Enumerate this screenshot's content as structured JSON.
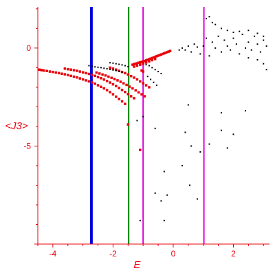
{
  "chart_data": {
    "type": "scatter",
    "title": "",
    "xlabel": "E",
    "ylabel": "<J3>",
    "xlim": [
      -4.5,
      3.2
    ],
    "ylim": [
      -10,
      2.1
    ],
    "grid": false,
    "legend": "none",
    "x_ticks": [
      -4,
      -2,
      0,
      2
    ],
    "x_tick_labels": [
      "-4",
      "-2",
      "0",
      "2"
    ],
    "y_ticks": [
      0,
      -5
    ],
    "y_tick_labels": [
      "0",
      "-5"
    ],
    "colors": {
      "axes": "#e8000b",
      "red_series": "#e8000b",
      "black_series": "#000000",
      "blue_line": "#0000dd",
      "green_line": "#008000",
      "magenta_line": "#e000e0"
    },
    "vertical_lines": [
      {
        "x": -2.72,
        "color": "#0000dd",
        "width": 4
      },
      {
        "x": -1.48,
        "color": "#008000",
        "width": 2
      },
      {
        "x": -1.0,
        "color": "#e000e0",
        "width": 2
      },
      {
        "x": 1.02,
        "color": "#e000e0",
        "width": 2
      }
    ],
    "series": [
      {
        "color": "#e8000b",
        "points": [
          [
            -4.45,
            -1.1
          ],
          [
            -4.4,
            -1.12
          ],
          [
            -4.35,
            -1.13
          ],
          [
            -4.3,
            -1.15
          ],
          [
            -4.2,
            -1.17
          ],
          [
            -4.1,
            -1.2
          ],
          [
            -4.0,
            -1.22
          ],
          [
            -3.9,
            -1.25
          ],
          [
            -3.8,
            -1.28
          ],
          [
            -3.7,
            -1.31
          ],
          [
            -3.6,
            -1.34
          ],
          [
            -3.5,
            -1.38
          ],
          [
            -3.4,
            -1.42
          ],
          [
            -3.3,
            -1.46
          ],
          [
            -3.2,
            -1.5
          ],
          [
            -3.1,
            -1.55
          ],
          [
            -3.0,
            -1.6
          ],
          [
            -2.9,
            -1.65
          ],
          [
            -2.8,
            -1.7
          ],
          [
            -2.7,
            -1.76
          ],
          [
            -2.6,
            -1.82
          ],
          [
            -2.5,
            -1.9
          ],
          [
            -2.4,
            -1.98
          ],
          [
            -2.3,
            -2.06
          ],
          [
            -2.2,
            -2.15
          ],
          [
            -2.1,
            -2.25
          ],
          [
            -2.0,
            -2.36
          ],
          [
            -1.9,
            -2.48
          ],
          [
            -1.8,
            -2.6
          ],
          [
            -1.7,
            -2.72
          ],
          [
            -1.6,
            -2.85
          ],
          [
            -3.6,
            -1.05
          ],
          [
            -3.5,
            -1.08
          ],
          [
            -3.4,
            -1.1
          ],
          [
            -3.3,
            -1.13
          ],
          [
            -3.2,
            -1.16
          ],
          [
            -3.1,
            -1.2
          ],
          [
            -3.0,
            -1.24
          ],
          [
            -2.9,
            -1.28
          ],
          [
            -2.8,
            -1.32
          ],
          [
            -2.7,
            -1.37
          ],
          [
            -2.6,
            -1.42
          ],
          [
            -2.5,
            -1.48
          ],
          [
            -2.4,
            -1.54
          ],
          [
            -2.3,
            -1.61
          ],
          [
            -2.2,
            -1.68
          ],
          [
            -2.1,
            -1.76
          ],
          [
            -2.0,
            -1.85
          ],
          [
            -1.9,
            -1.94
          ],
          [
            -1.8,
            -2.04
          ],
          [
            -1.7,
            -2.14
          ],
          [
            -1.6,
            -2.24
          ],
          [
            -1.5,
            -2.35
          ],
          [
            -1.4,
            -2.46
          ],
          [
            -1.3,
            -2.56
          ],
          [
            -2.55,
            -1.25
          ],
          [
            -2.45,
            -1.3
          ],
          [
            -2.35,
            -1.35
          ],
          [
            -2.25,
            -1.4
          ],
          [
            -2.15,
            -1.46
          ],
          [
            -2.05,
            -1.52
          ],
          [
            -1.95,
            -1.58
          ],
          [
            -1.85,
            -1.65
          ],
          [
            -1.75,
            -1.72
          ],
          [
            -1.65,
            -1.8
          ],
          [
            -1.55,
            -1.88
          ],
          [
            -1.45,
            -1.97
          ],
          [
            -1.35,
            -2.06
          ],
          [
            -1.25,
            -2.16
          ],
          [
            -1.15,
            -2.26
          ],
          [
            -1.05,
            -2.36
          ],
          [
            -0.95,
            -2.46
          ],
          [
            -2.1,
            -1.0
          ],
          [
            -2.0,
            -1.05
          ],
          [
            -1.9,
            -1.1
          ],
          [
            -1.8,
            -1.16
          ],
          [
            -1.7,
            -1.22
          ],
          [
            -1.6,
            -1.28
          ],
          [
            -1.5,
            -1.35
          ],
          [
            -1.4,
            -1.43
          ],
          [
            -1.3,
            -1.51
          ],
          [
            -1.2,
            -1.6
          ],
          [
            -1.1,
            -1.7
          ],
          [
            -1.0,
            -1.8
          ],
          [
            -0.9,
            -1.9
          ],
          [
            -0.8,
            -2.0
          ],
          [
            -1.35,
            -0.85
          ],
          [
            -1.3,
            -0.82
          ],
          [
            -1.25,
            -0.8
          ],
          [
            -1.2,
            -0.78
          ],
          [
            -1.15,
            -0.75
          ],
          [
            -1.1,
            -0.73
          ],
          [
            -1.05,
            -0.71
          ],
          [
            -1.0,
            -0.68
          ],
          [
            -0.95,
            -0.66
          ],
          [
            -0.9,
            -0.63
          ],
          [
            -0.85,
            -0.6
          ],
          [
            -0.8,
            -0.57
          ],
          [
            -0.75,
            -0.54
          ],
          [
            -0.7,
            -0.51
          ],
          [
            -0.65,
            -0.48
          ],
          [
            -0.6,
            -0.45
          ],
          [
            -0.55,
            -0.42
          ],
          [
            -0.5,
            -0.39
          ],
          [
            -0.45,
            -0.36
          ],
          [
            -0.4,
            -0.33
          ],
          [
            -0.35,
            -0.3
          ],
          [
            -0.3,
            -0.27
          ],
          [
            -0.25,
            -0.24
          ],
          [
            -0.2,
            -0.21
          ],
          [
            -0.15,
            -0.18
          ],
          [
            -0.1,
            -0.15
          ],
          [
            -1.3,
            -0.95
          ],
          [
            -1.2,
            -0.9
          ],
          [
            -1.1,
            -0.85
          ],
          [
            -1.0,
            -0.8
          ],
          [
            -0.9,
            -0.74
          ],
          [
            -0.8,
            -0.68
          ],
          [
            -0.7,
            -0.62
          ],
          [
            -0.6,
            -0.56
          ],
          [
            -1.05,
            -1.15
          ],
          [
            -1.0,
            -1.2
          ],
          [
            -1.5,
            -3.9
          ],
          [
            -1.1,
            -5.2
          ]
        ]
      },
      {
        "color": "#000000",
        "points": [
          [
            -2.8,
            -0.9
          ],
          [
            -2.7,
            -0.93
          ],
          [
            -2.6,
            -0.96
          ],
          [
            -2.5,
            -0.98
          ],
          [
            -2.4,
            -1.0
          ],
          [
            -2.3,
            -1.03
          ],
          [
            -2.2,
            -1.06
          ],
          [
            -2.1,
            -1.09
          ],
          [
            -2.0,
            -1.12
          ],
          [
            -1.9,
            -1.15
          ],
          [
            -1.8,
            -1.19
          ],
          [
            -1.7,
            -1.23
          ],
          [
            -2.1,
            -0.75
          ],
          [
            -2.0,
            -0.77
          ],
          [
            -1.9,
            -0.8
          ],
          [
            -1.8,
            -0.83
          ],
          [
            -1.7,
            -0.86
          ],
          [
            -1.6,
            -0.9
          ],
          [
            -1.5,
            -0.95
          ],
          [
            -0.9,
            -0.85
          ],
          [
            -0.8,
            -0.9
          ],
          [
            -0.7,
            -1.0
          ],
          [
            -0.6,
            -1.1
          ],
          [
            -0.5,
            -1.2
          ],
          [
            -0.4,
            -1.3
          ],
          [
            -0.85,
            -1.45
          ],
          [
            -0.75,
            -1.6
          ],
          [
            -0.65,
            -1.75
          ],
          [
            -0.55,
            -1.9
          ],
          [
            0.2,
            -0.1
          ],
          [
            0.3,
            0.0
          ],
          [
            0.4,
            -0.1
          ],
          [
            0.5,
            0.1
          ],
          [
            0.6,
            -0.2
          ],
          [
            0.7,
            0.2
          ],
          [
            0.8,
            0.05
          ],
          [
            0.9,
            -0.3
          ],
          [
            1.0,
            0.1
          ],
          [
            1.1,
            0.5
          ],
          [
            1.2,
            -0.4
          ],
          [
            1.3,
            0.3
          ],
          [
            1.4,
            0.0
          ],
          [
            1.5,
            0.6
          ],
          [
            1.6,
            -0.2
          ],
          [
            1.7,
            0.4
          ],
          [
            1.8,
            0.1
          ],
          [
            1.9,
            -0.1
          ],
          [
            2.0,
            0.5
          ],
          [
            2.1,
            0.2
          ],
          [
            2.2,
            -0.3
          ],
          [
            2.3,
            0.7
          ],
          [
            2.4,
            0.0
          ],
          [
            2.5,
            0.3
          ],
          [
            2.6,
            -0.1
          ],
          [
            2.7,
            0.6
          ],
          [
            2.8,
            0.2
          ],
          [
            2.9,
            -0.2
          ],
          [
            3.0,
            0.4
          ],
          [
            3.1,
            0.1
          ],
          [
            1.1,
            1.5
          ],
          [
            1.2,
            1.6
          ],
          [
            1.3,
            1.3
          ],
          [
            1.4,
            1.2
          ],
          [
            1.6,
            1.0
          ],
          [
            1.8,
            0.9
          ],
          [
            2.0,
            0.8
          ],
          [
            2.2,
            0.85
          ],
          [
            2.5,
            0.9
          ],
          [
            2.8,
            0.75
          ],
          [
            3.0,
            0.6
          ],
          [
            2.5,
            -0.5
          ],
          [
            2.8,
            -0.6
          ],
          [
            3.0,
            -0.8
          ],
          [
            3.1,
            -1.1
          ],
          [
            0.5,
            -2.9
          ],
          [
            0.4,
            -4.3
          ],
          [
            1.2,
            -4.9
          ],
          [
            1.6,
            -3.3
          ],
          [
            1.6,
            -4.2
          ],
          [
            1.8,
            -5.1
          ],
          [
            0.6,
            -5.0
          ],
          [
            0.9,
            -5.3
          ],
          [
            -0.3,
            -6.3
          ],
          [
            -0.2,
            -7.5
          ],
          [
            0.3,
            -6.0
          ],
          [
            0.55,
            -7.0
          ],
          [
            0.8,
            -7.7
          ],
          [
            -0.6,
            -7.4
          ],
          [
            -0.4,
            -7.8
          ],
          [
            -0.3,
            -8.8
          ],
          [
            -1.1,
            -8.8
          ],
          [
            -1.2,
            -3.7
          ],
          [
            -0.6,
            -4.1
          ],
          [
            -1.0,
            -3.5
          ],
          [
            2.0,
            -4.4
          ],
          [
            2.4,
            -3.2
          ]
        ]
      }
    ]
  }
}
